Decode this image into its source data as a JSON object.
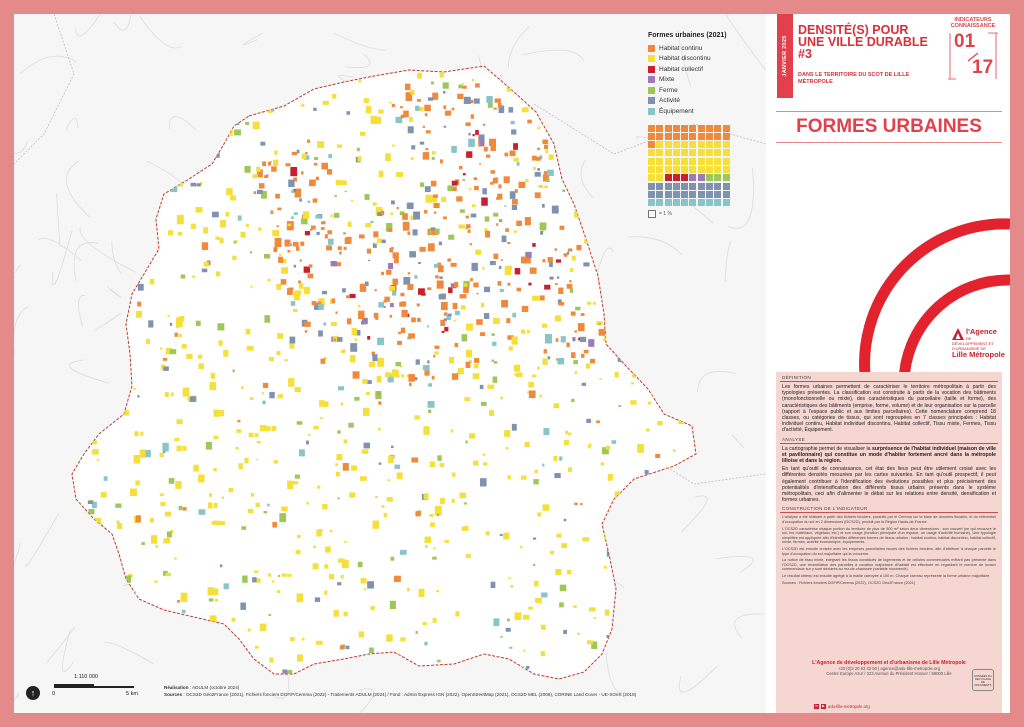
{
  "legend": {
    "title": "Formes urbaines (2021)",
    "items": [
      {
        "label": "Habitat continu",
        "color": "#ef8a3c"
      },
      {
        "label": "Habitat discontinu",
        "color": "#f5df3a"
      },
      {
        "label": "Habitat collectif",
        "color": "#c8202c"
      },
      {
        "label": "Mixte",
        "color": "#9b7bb8"
      },
      {
        "label": "Ferme",
        "color": "#9cc85a"
      },
      {
        "label": "Activité",
        "color": "#7f92b0"
      },
      {
        "label": "Équipement",
        "color": "#88c4c8"
      }
    ],
    "waffle_counts": [
      21,
      41,
      3,
      2,
      3,
      20,
      10
    ],
    "waffle_note": "= 1 %"
  },
  "header": {
    "date_tab": "JANVIER 2025",
    "series_title": "DENSITÉ(S) POUR UNE VILLE DURABLE #3",
    "series_sub": "DANS LE TERRITOIRE DU SCOT DE LILLE MÉTROPOLE",
    "indicator_label": "INDICATEURS CONNAISSANCE",
    "indicator_num": "01",
    "indicator_total": "17",
    "main_title": "FORMES URBAINES"
  },
  "agency": {
    "line1": "l'Agence",
    "line2": "DE DÉVELOPPEMENT ET D'URBANISME DE",
    "line3": "Lille Métropole"
  },
  "definition": {
    "heading": "DÉFINITION",
    "text": "Les formes urbaines permettent de caractériser le territoire métropolitain à partir des typologies présentes. La classification est construite à partir de la vocation des bâtiments (monofonctionnelle ou mixte), des caractéristiques du parcellaire (taille et forme), des caractéristiques des bâtiments (emprise, forme, volume) et de leur organisation sur la parcelle (rapport à l'espace public et aux limites parcellaires). Cette nomenclature comprend 18 classes, ou catégories de tissus, qui sont regroupées en 7 classes principales : Habitat individuel continu, Habitat individuel discontinu, Habitat collectif, Tissu mixte, Fermes, Tissu d'activité, Équipement."
  },
  "analyse": {
    "heading": "ANALYSE",
    "text1_pre": "La cartographie permet de visualiser la ",
    "text1_bold": "surprésence de l'habitat individuel (maison de ville et pavillonnaire) qui constitue un mode d'habiter fortement ancré dans la métropole lilloise et dans la région.",
    "text2": "En tant qu'outil de connaissance, cet état des lieux peut être utilement croisé avec les différentes densités mesurées par les cartes suivantes. En tant qu'outil prospectif, il peut également contribuer à l'identification des évolutions possibles et plus précisément des potentialités d'intensification des différents tissus urbains présents dans le système métropolitain, ceci afin d'alimenter le débat sur les relations entre densité, densification et formes urbaines."
  },
  "construction": {
    "heading": "CONSTRUCTION DE L'INDICATEUR",
    "p1": "L'analyse a été réalisée à partir des fichiers fonciers, produits par le Cerema sur la base de données fiscales, et du référentiel d'occupation du sol en 2 dimensions (OCS2D), produit par la Région Hauts-de-France.",
    "p2": "L'OCS2D caractérise chaque portion du territoire de plus de 500 m² selon deux dimensions : son couvert (ce qui recouvre le sol, les matériaux, végétaux etc.) et son usage (fonction principale d'un espace, un usage d'activité humaine). Une typologie simplifiée est appliquée afin d'identifier différentes formes de tissus urbains : habitat continu, habitat discontinu, habitat collectif, mixte, fermes, activité économique, équipements.",
    "p3": "L'OCS2D est ensuite croisée avec les emprises parcellaires issues des fichiers fonciers, afin d'attribuer à chaque parcelle le type d'occupation du sol majoritaire qui la concerne.",
    "p4": "La notion de tissu mixte, intégrant les tissus constitués de logements et de cellules commerciales mêlant pas présente dans l'OCS2D, une reventilation des parcelles à vocation majoritaire d'habitat est effectuée en regardant le nombre de locaux commerciaux sur y sont déclarés au rez-de-chaussée (variable nlocmerch).",
    "p5": "Le résultat obtenu est ensuite agrégé à la maille carroyée à 100 m. Chaque carreau représente la forme urbaine majoritaire.",
    "sources": "Sources : Fichiers fonciers DGFiP/Cerema (2022), OCS2D Géo2France (2021)"
  },
  "footer": {
    "title": "L'Agence de développement et d'urbanisme de Lille Métropole",
    "line1": "+33 (0)3 20 63 33 50 | agence@adu-lille-metropole.org",
    "line2": "Centre Europe Azur / 323 Avenue du Président Hoover / 59000 Lille",
    "web": "adu-lille-metropole.org",
    "badge": "DONNÉES DU RECYCLAGE DE DOCUMENTS"
  },
  "map_notes": {
    "north": "↑",
    "scale_ratio": "1:110 000",
    "scale_start": "0",
    "scale_end": "5 km",
    "realisation_label": "Réalisation",
    "realisation": " : ADULM (octobre 2024)",
    "sources_label": "Sources",
    "sources": " : OCS2D Géo2France (2021), Fichiers fonciers DGFiP/Cerema (2022) - Traitements ADULM (2024) / Fond : Admin Express IGN (2022), OpenStreetMap (2021), OCS2D MEL (2008), CORINE Land Cover - UE-SOeS (2018)"
  }
}
